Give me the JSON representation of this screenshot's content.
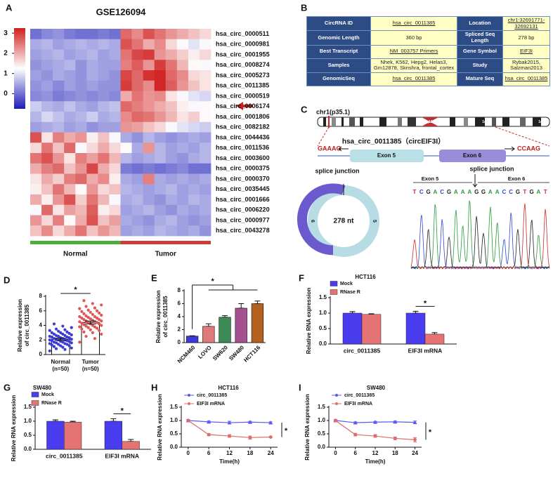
{
  "chart_data": [
    {
      "type": "heatmap",
      "label": "A",
      "title": "GSE126094",
      "row_labels": [
        "hsa_circ_0000511",
        "hsa_circ_0000981",
        "hsa_circ_0001955",
        "hsa_circ_0008274",
        "hsa_circ_0005273",
        "hsa_circ_0011385",
        "hsa_circ_0000519",
        "hsa_circ_0006174",
        "hsa_circ_0001806",
        "hsa_circ_0082182",
        "hsa_circ_0044436",
        "hsa_circ_0011536",
        "hsa_circ_0003600",
        "hsa_circ_0000375",
        "hsa_circ_0000370",
        "hsa_circ_0035445",
        "hsa_circ_0001666",
        "hsa_circ_0006220",
        "hsa_circ_0000977",
        "hsa_circ_0043278"
      ],
      "groups": [
        {
          "name": "Normal",
          "color": "#4caf3a",
          "size": 8
        },
        {
          "name": "Tumor",
          "color": "#d03a3a",
          "size": 8
        }
      ],
      "values": [
        [
          0,
          0.2,
          0.3,
          0.1,
          0,
          0,
          0.1,
          0,
          2.6,
          2.3,
          2.8,
          2.5,
          2.2,
          2.0,
          1.8,
          1.6
        ],
        [
          0.5,
          0.6,
          0.4,
          0.5,
          0.6,
          0.5,
          0.6,
          0.5,
          2.8,
          2.5,
          2.0,
          2.3,
          1.6,
          1.3,
          1.0,
          1.2
        ],
        [
          0.4,
          0.5,
          0.6,
          0.4,
          0.5,
          0.6,
          0.4,
          0.5,
          2.5,
          2.9,
          3.0,
          2.2,
          2.0,
          1.7,
          1.4,
          1.6
        ],
        [
          0.3,
          0.4,
          0.5,
          0.6,
          0.3,
          0.5,
          0.4,
          0.4,
          2.4,
          2.7,
          2.2,
          3.0,
          2.5,
          1.9,
          1.3,
          1.2
        ],
        [
          0.4,
          0.3,
          0.5,
          0.4,
          0.3,
          0.5,
          0.4,
          0.3,
          2.9,
          2.6,
          3.1,
          3.2,
          2.6,
          2.3,
          1.6,
          1.5
        ],
        [
          0.3,
          0.4,
          0.2,
          0.4,
          0.3,
          0.4,
          0.3,
          0.3,
          3.0,
          2.6,
          2.3,
          3.2,
          2.7,
          2.2,
          1.8,
          1.5
        ],
        [
          0.2,
          0.3,
          0.1,
          0.2,
          0.3,
          0.2,
          0.3,
          0.2,
          2.0,
          2.5,
          2.2,
          2.3,
          1.5,
          1.2,
          1.0,
          0.9
        ],
        [
          0.8,
          0.6,
          0.5,
          0.7,
          0.5,
          0.4,
          0.6,
          0.7,
          2.6,
          2.4,
          2.2,
          2.0,
          1.8,
          1.4,
          1.2,
          1.3
        ],
        [
          0.6,
          0.9,
          0.7,
          0.5,
          0.6,
          0.8,
          0.5,
          0.6,
          2.3,
          2.6,
          2.5,
          2.2,
          1.9,
          1.5,
          1.7,
          1.3
        ],
        [
          0.4,
          0.5,
          0.6,
          0.4,
          0.5,
          0.3,
          0.4,
          0.4,
          2.2,
          2.1,
          1.8,
          1.6,
          1.2,
          1.0,
          0.9,
          0.8
        ],
        [
          2.8,
          1.5,
          2.4,
          2.0,
          2.2,
          1.4,
          1.8,
          1.2,
          0.5,
          0.3,
          0.6,
          0.4,
          0.3,
          0.4,
          0.5,
          0.4
        ],
        [
          1.6,
          2.5,
          1.8,
          2.6,
          1.2,
          1.6,
          2.0,
          1.6,
          1.3,
          0.5,
          2.2,
          0.6,
          0.4,
          0.5,
          0.4,
          0.6
        ],
        [
          2.5,
          2.8,
          2.2,
          1.5,
          2.4,
          2.1,
          2.5,
          1.9,
          0.6,
          0.4,
          0.5,
          0.6,
          0.4,
          0.3,
          0.5,
          0.6
        ],
        [
          2.0,
          2.4,
          2.6,
          1.8,
          2.2,
          2.9,
          2.0,
          1.6,
          0.1,
          0.0,
          0.1,
          0.0,
          0.1,
          0.2,
          0.0,
          0.0
        ],
        [
          1.5,
          2.0,
          1.7,
          2.4,
          2.6,
          2.0,
          2.3,
          1.4,
          0.5,
          0.4,
          2.4,
          0.5,
          0.4,
          0.5,
          0.4,
          0.5
        ],
        [
          1.4,
          1.8,
          2.5,
          1.9,
          1.3,
          2.2,
          1.6,
          1.8,
          0.6,
          0.5,
          0.4,
          0.5,
          0.6,
          0.4,
          0.5,
          0.4
        ],
        [
          2.0,
          1.4,
          2.2,
          2.8,
          1.7,
          2.5,
          1.9,
          1.2,
          0.5,
          0.6,
          0.4,
          0.3,
          0.5,
          0.4,
          0.6,
          0.5
        ],
        [
          1.2,
          2.6,
          1.5,
          2.1,
          1.9,
          2.7,
          1.4,
          1.6,
          0.4,
          0.5,
          0.6,
          0.4,
          0.3,
          0.5,
          0.4,
          0.5
        ],
        [
          2.2,
          1.6,
          2.4,
          1.3,
          2.0,
          2.8,
          1.8,
          2.1,
          0.5,
          0.4,
          0.3,
          0.5,
          0.6,
          0.4,
          0.3,
          0.4
        ],
        [
          1.8,
          2.3,
          1.6,
          2.0,
          2.5,
          1.8,
          2.2,
          1.9,
          0.4,
          0.5,
          0.4,
          0.6,
          0.5,
          0.4,
          0.5,
          0.3
        ]
      ],
      "clim": [
        -0.75,
        3.25
      ],
      "colorbar_ticks": [
        0,
        1,
        2,
        3
      ],
      "colors": {
        "low": "#1c1cb8",
        "mid": "#ffffff",
        "high": "#d02020"
      }
    },
    {
      "type": "dotbar",
      "label": "D",
      "ylabel": [
        "Relative expression",
        "of circ_0011385"
      ],
      "categories": [
        "Normal",
        "Tumor"
      ],
      "n_labels": [
        "(n=50)",
        "(n=50)"
      ],
      "values": [
        2.1,
        4.4
      ],
      "errors": [
        0.15,
        0.2
      ],
      "points": [
        [
          0.5,
          0.7,
          0.8,
          0.9,
          1.0,
          1.1,
          1.2,
          1.2,
          1.3,
          1.4,
          1.4,
          1.5,
          1.5,
          1.6,
          1.6,
          1.7,
          1.7,
          1.8,
          1.8,
          1.9,
          1.9,
          2.0,
          2.0,
          2.0,
          2.1,
          2.1,
          2.2,
          2.2,
          2.3,
          2.3,
          2.4,
          2.4,
          2.5,
          2.5,
          2.6,
          2.6,
          2.7,
          2.8,
          2.8,
          2.9,
          3.0,
          3.0,
          3.1,
          3.2,
          3.3,
          3.4,
          3.5,
          3.7,
          3.9,
          4.2
        ],
        [
          1.7,
          2.2,
          2.5,
          2.8,
          3.0,
          3.1,
          3.3,
          3.4,
          3.5,
          3.6,
          3.7,
          3.8,
          3.8,
          3.9,
          4.0,
          4.0,
          4.1,
          4.2,
          4.2,
          4.3,
          4.4,
          4.4,
          4.5,
          4.5,
          4.6,
          4.6,
          4.7,
          4.8,
          4.8,
          4.9,
          5.0,
          5.0,
          5.1,
          5.2,
          5.2,
          5.3,
          5.4,
          5.5,
          5.6,
          5.7,
          5.8,
          5.9,
          6.0,
          6.1,
          6.3,
          6.4,
          6.6,
          6.8,
          7.0,
          7.4
        ]
      ],
      "colors": [
        "#3b3bd6",
        "#e05555"
      ],
      "ylim": [
        0,
        8
      ],
      "yticks": [
        0,
        2,
        4,
        6,
        8
      ],
      "significance": "*"
    },
    {
      "type": "bar",
      "label": "E",
      "ylabel": [
        "Relative expression",
        "of circ_0011385"
      ],
      "categories": [
        "NCM460",
        "LOVO",
        "SW620",
        "SW480",
        "HCT116"
      ],
      "values": [
        1.0,
        2.5,
        3.9,
        5.3,
        6.0
      ],
      "errors": [
        0.05,
        0.4,
        0.25,
        0.7,
        0.4
      ],
      "colors": [
        "#3a3ad8",
        "#e07a7a",
        "#3c8a56",
        "#a55090",
        "#b4601e"
      ],
      "ylim": [
        0,
        8
      ],
      "yticks": [
        0,
        2,
        4,
        6,
        8
      ],
      "significance": "*"
    },
    {
      "type": "grouped_bar",
      "label": "F",
      "title": "HCT116",
      "ylabel": "Relative RNA expression",
      "categories": [
        "circ_0011385",
        "EIF3I mRNA"
      ],
      "series": [
        {
          "name": "Mock",
          "color": "#4a3df0",
          "values": [
            1.0,
            1.0
          ],
          "errors": [
            0.05,
            0.06
          ]
        },
        {
          "name": "RNase R",
          "color": "#e57373",
          "values": [
            0.96,
            0.32
          ],
          "errors": [
            0.02,
            0.05
          ]
        }
      ],
      "ylim": [
        0,
        1.5
      ],
      "yticks": [
        {
          "value": 0,
          "label": "0.0"
        },
        0.5,
        {
          "value": 1,
          "label": "1.0"
        },
        1.5
      ],
      "significance": "*"
    },
    {
      "type": "grouped_bar",
      "label": "G",
      "title": "SW480",
      "ylabel": "Relative RNA expression",
      "categories": [
        "circ_0011385",
        "EIF3I mRNA"
      ],
      "series": [
        {
          "name": "Mock",
          "color": "#4a3df0",
          "values": [
            1.0,
            1.0
          ],
          "errors": [
            0.05,
            0.09
          ]
        },
        {
          "name": "RNase R",
          "color": "#e57373",
          "values": [
            0.97,
            0.28
          ],
          "errors": [
            0.03,
            0.07
          ]
        }
      ],
      "ylim": [
        0,
        1.5
      ],
      "yticks": [
        {
          "value": 0,
          "label": "0.0"
        },
        0.5,
        {
          "value": 1,
          "label": "1.0"
        },
        1.5
      ],
      "significance": "*"
    },
    {
      "type": "line",
      "label": "H",
      "title": "HCT116",
      "ylabel": "Relative RNA expression",
      "xlabel": "Time(h)",
      "x": [
        0,
        6,
        12,
        18,
        24
      ],
      "series": [
        {
          "name": "circ_0011385",
          "color": "#5a5af0",
          "marker": "triangle",
          "values": [
            1.0,
            0.95,
            0.92,
            0.94,
            0.92
          ],
          "errors": [
            0.03,
            0.03,
            0.05,
            0.03,
            0.03
          ]
        },
        {
          "name": "EIF3I mRNA",
          "color": "#e06a6a",
          "marker": "circle",
          "values": [
            1.0,
            0.47,
            0.42,
            0.36,
            0.38
          ],
          "errors": [
            0.04,
            0.04,
            0.05,
            0.06,
            0.02
          ]
        }
      ],
      "xlim": [
        -2,
        26
      ],
      "xticks": [
        0,
        6,
        12,
        18,
        24
      ],
      "ylim": [
        0,
        1.5
      ],
      "yticks": [
        {
          "value": 0,
          "label": "0.0"
        },
        0.5,
        {
          "value": 1,
          "label": "1.0"
        },
        1.5
      ],
      "significance": "*"
    },
    {
      "type": "line",
      "label": "I",
      "title": "SW480",
      "ylabel": "Relative RNA expression",
      "xlabel": "Time(h)",
      "x": [
        0,
        6,
        12,
        18,
        24
      ],
      "series": [
        {
          "name": "circ_0011385",
          "color": "#5a5af0",
          "marker": "triangle",
          "values": [
            1.0,
            0.92,
            0.94,
            0.95,
            0.93
          ],
          "errors": [
            0.02,
            0.03,
            0.03,
            0.03,
            0.05
          ]
        },
        {
          "name": "EIF3I mRNA",
          "color": "#e06a6a",
          "marker": "circle",
          "values": [
            1.0,
            0.47,
            0.42,
            0.33,
            0.28
          ],
          "errors": [
            0.04,
            0.05,
            0.05,
            0.05,
            0.08
          ]
        }
      ],
      "xlim": [
        -2,
        26
      ],
      "xticks": [
        0,
        6,
        12,
        18,
        24
      ],
      "ylim": [
        0,
        1.5
      ],
      "yticks": [
        {
          "value": 0,
          "label": "0.0"
        },
        0.5,
        {
          "value": 1,
          "label": "1.0"
        },
        1.5
      ],
      "significance": "*"
    }
  ],
  "table": {
    "label": "B",
    "rows": [
      [
        "CircRNA ID",
        "hsa_circ_0011385",
        "Location",
        "chr1:32691771-32692131"
      ],
      [
        "Genomic Length",
        "360 bp",
        "Spliced Seq Length",
        "278 bp"
      ],
      [
        "Best Transcript",
        "NM_003757  Primers",
        "Gene Symbol",
        "EIF3I"
      ],
      [
        "Samples",
        "Nhek, K562, Hepg2, Helas3, Gm12878, Sknshra, frontal_cortex",
        "Study",
        "Rybak2015, Salzman2013"
      ],
      [
        "GenomicSeq",
        "hsa_circ_0011385",
        "Mature Seq",
        "hsa_circ_0011385"
      ]
    ]
  },
  "diagram": {
    "label": "C",
    "chromosome": "chr1(p35.1)",
    "bands": [
      "1p31.1",
      "1q12",
      "1q41",
      "1q44"
    ],
    "left_seq": "GAAAG",
    "right_seq": "CCAAG",
    "circ_name": "hsa_circ_0011385（circEIF3I）",
    "exons": [
      "Exon 5",
      "Exon 6"
    ],
    "junction": "splice junction",
    "length": "278 nt",
    "donut_labels": [
      "6",
      "5"
    ],
    "sequence": [
      "T",
      "C",
      "G",
      "A",
      "C",
      "G",
      "A",
      "A",
      "A",
      "G",
      "G",
      "A",
      "A",
      "C",
      "C",
      "G",
      "T",
      "G",
      "A",
      "T"
    ]
  }
}
